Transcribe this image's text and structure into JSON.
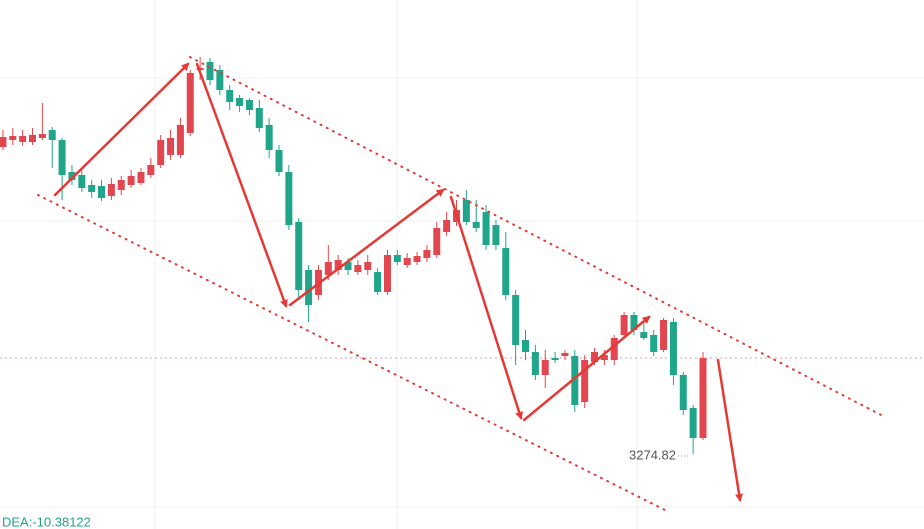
{
  "chart_data": {
    "type": "candlestick",
    "categories": [
      null,
      null,
      null,
      null,
      null,
      null,
      null,
      null,
      null,
      null,
      null,
      null,
      null,
      null,
      null,
      null,
      null,
      null,
      null,
      null,
      null,
      null,
      null,
      null,
      null,
      null,
      null,
      null,
      null,
      null,
      null,
      null,
      null,
      null,
      null,
      null,
      null,
      null,
      null,
      null,
      null,
      null,
      null,
      null,
      null,
      null,
      null,
      null,
      null,
      null,
      null,
      null,
      null,
      null,
      null,
      null,
      null,
      null,
      null,
      null,
      null,
      null,
      null,
      null,
      null,
      null,
      null,
      null,
      null,
      null,
      null,
      null
    ],
    "open": [
      3397.6,
      3400.4,
      3399.6,
      3399.6,
      3401.2,
      3404.4,
      3400.4,
      3387.6,
      3386.4,
      3382.4,
      3382.0,
      3378.0,
      3380.4,
      3382.4,
      3383.2,
      3386.4,
      3390.4,
      3394.4,
      3394.4,
      3403.2,
      3428.4,
      3431.6,
      3428.4,
      3420.4,
      3417.2,
      3416.4,
      3413.2,
      3406.4,
      3396.4,
      3387.6,
      3367.6,
      3348.4,
      3338.4,
      3346.4,
      3348.4,
      3351.6,
      3347.6,
      3348.4,
      3347.6,
      3339.6,
      3354.4,
      3350.4,
      3351.6,
      3353.2,
      3354.4,
      3363.6,
      3367.6,
      3376.4,
      3367.6,
      3371.6,
      3366.4,
      3357.2,
      3338.4,
      3320.4,
      3315.6,
      3306.4,
      3313.2,
      3314.0,
      3314.0,
      3295.6,
      3311.6,
      3312.4,
      3312.4,
      3322.4,
      3330.4,
      3323.6,
      3322.4,
      3316.4,
      3327.6,
      3306.4,
      3293.2,
      3281.2
    ],
    "close": [
      3401.6,
      3402.0,
      3402.0,
      3402.4,
      3402.8,
      3400.4,
      3386.4,
      3384.4,
      3381.2,
      3379.6,
      3377.2,
      3382.8,
      3384.4,
      3386.0,
      3387.6,
      3390.4,
      3400.4,
      3401.2,
      3406.4,
      3427.2,
      3429.2,
      3424.4,
      3420.4,
      3415.6,
      3414.0,
      3412.4,
      3405.2,
      3396.4,
      3387.6,
      3366.4,
      3340.4,
      3334.4,
      3348.4,
      3351.6,
      3352.4,
      3348.4,
      3350.4,
      3351.6,
      3339.6,
      3354.4,
      3351.6,
      3353.2,
      3354.0,
      3356.4,
      3365.2,
      3368.4,
      3372.4,
      3367.6,
      3365.2,
      3358.4,
      3358.4,
      3338.4,
      3318.4,
      3315.6,
      3306.4,
      3312.4,
      3312.4,
      3315.2,
      3294.4,
      3312.4,
      3315.6,
      3314.4,
      3321.2,
      3330.4,
      3324.4,
      3321.2,
      3315.6,
      3328.4,
      3306.4,
      3292.4,
      3281.2,
      3313.2
    ],
    "high": [
      3404.4,
      3405.2,
      3404.4,
      3405.2,
      3415.2,
      3405.6,
      3401.2,
      3390.4,
      3388.4,
      3384.4,
      3384.4,
      3385.2,
      3386.0,
      3388.4,
      3389.2,
      3393.2,
      3402.4,
      3404.4,
      3409.2,
      3428.4,
      3433.6,
      3433.2,
      3430.4,
      3422.4,
      3418.4,
      3417.2,
      3416.4,
      3409.2,
      3398.4,
      3390.4,
      3369.2,
      3350.4,
      3350.4,
      3358.4,
      3354.4,
      3353.2,
      3352.4,
      3354.4,
      3349.2,
      3356.4,
      3356.4,
      3355.2,
      3355.6,
      3358.4,
      3367.6,
      3371.6,
      3376.4,
      3380.4,
      3376.4,
      3374.4,
      3368.4,
      3363.6,
      3340.4,
      3324.4,
      3318.4,
      3316.4,
      3315.6,
      3316.4,
      3316.4,
      3314.4,
      3317.2,
      3316.4,
      3322.4,
      3331.6,
      3331.6,
      3328.4,
      3324.4,
      3329.2,
      3329.2,
      3307.6,
      3294.4,
      3315.6
    ],
    "low": [
      3396.4,
      3398.4,
      3398.0,
      3398.4,
      3400.4,
      3389.2,
      3376.4,
      3382.4,
      3379.6,
      3377.2,
      3376.0,
      3376.4,
      3378.4,
      3381.2,
      3382.4,
      3385.2,
      3389.2,
      3392.4,
      3393.2,
      3402.0,
      3424.4,
      3422.4,
      3418.4,
      3412.4,
      3411.6,
      3410.4,
      3403.6,
      3393.2,
      3386.0,
      3364.4,
      3336.4,
      3327.6,
      3336.4,
      3344.4,
      3346.4,
      3346.4,
      3346.4,
      3346.4,
      3338.4,
      3338.4,
      3350.4,
      3349.2,
      3350.4,
      3351.6,
      3353.2,
      3362.0,
      3366.0,
      3366.4,
      3363.6,
      3356.4,
      3356.4,
      3336.4,
      3310.4,
      3312.4,
      3304.4,
      3301.2,
      3311.2,
      3312.4,
      3291.6,
      3293.2,
      3310.4,
      3310.4,
      3310.4,
      3321.2,
      3322.4,
      3320.4,
      3314.0,
      3315.6,
      3302.4,
      3290.4,
      3274.82,
      3280.4
    ],
    "ylim": [
      3244.8,
      3456.4
    ],
    "up_color": "#e2474f",
    "down_color": "#1fa58a",
    "annotation": "3274.82",
    "indicator": "DEA:-10.38122"
  }
}
